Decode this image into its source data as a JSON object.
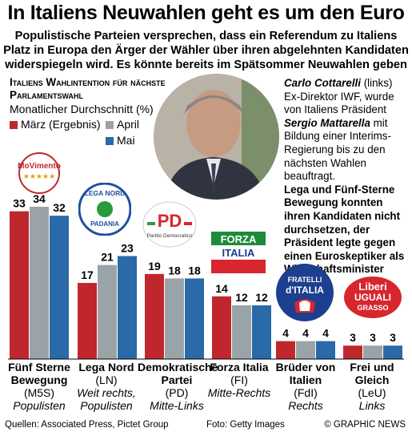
{
  "headline": "In Italiens Neuwahlen geht es um den Euro",
  "intro": "Populistische Parteien versprechen, dass ein Referendum zu Italiens Platz in Europa den Ärger der Wähler über ihren abgelehnten Kandidaten widerspiegeln wird. Es könnte bereits im Spätsommer Neuwahlen geben",
  "sidebar": {
    "line1_name": "Carlo Cottarelli",
    "line1_rest": " (links) Ex-Direktor IWF, wurde von Italiens Präsident",
    "line2_name": "Sergio Mattarella",
    "line2_rest": " mit Bildung einer Interims-Regierung bis zu den nächsten Wahlen beauftragt.",
    "para2": "Lega und Fünf-Sterne Bewegung konnten ihren Kandidaten nicht durchsetzen, der Präsident legte gegen einen Euroskeptiker als Wirtschaftsminister Veto ein"
  },
  "logos": {
    "m5s": {
      "text": "MoVimento",
      "sub": "★★★★★"
    },
    "lega": {
      "text1": "LEGA NORD",
      "text2": "PADANIA"
    },
    "pd": {
      "text": "PD",
      "sub": "Partito Democratico"
    },
    "fi": {
      "text1": "FORZA",
      "text2": "ITALIA"
    },
    "fdi": {
      "text1": "FRATELLI",
      "text2": "d'ITALIA"
    },
    "leu": {
      "text1": "Liberi",
      "text2": "UGUALI",
      "text3": "GRASSO"
    }
  },
  "chart_data": {
    "type": "bar",
    "title": "Italiens Wahlintention für nächste Parlamentswahl",
    "subtitle": "Monatlicher Durchschnitt (%)",
    "categories": [
      "Fünf Sterne Bewegung",
      "Lega Nord",
      "Demokratische Partei",
      "Forza Italia",
      "Brüder von Italien",
      "Frei und Gleich"
    ],
    "category_labels": [
      {
        "name": "Fünf Sterne Bewegung",
        "abbr": "(M5S)",
        "orient": "Populisten"
      },
      {
        "name": "Lega Nord",
        "abbr": "(LN)",
        "orient": "Weit rechts, Populisten"
      },
      {
        "name": "Demokratische Partei",
        "abbr": "(PD)",
        "orient": "Mitte-Links"
      },
      {
        "name": "Forza Italia",
        "abbr": "(FI)",
        "orient": "Mitte-Rechts"
      },
      {
        "name": "Brüder von Italien",
        "abbr": "(FdI)",
        "orient": "Rechts"
      },
      {
        "name": "Frei und Gleich",
        "abbr": "(LeU)",
        "orient": "Links"
      }
    ],
    "series": [
      {
        "name": "März (Ergebnis)",
        "color": "#c0272d",
        "values": [
          33,
          17,
          19,
          14,
          4,
          3
        ]
      },
      {
        "name": "April",
        "color": "#9aa3a8",
        "values": [
          34,
          21,
          18,
          12,
          4,
          3
        ]
      },
      {
        "name": "Mai",
        "color": "#2a6aa8",
        "values": [
          32,
          23,
          18,
          12,
          4,
          3
        ]
      }
    ],
    "ylim": [
      0,
      34
    ],
    "legend_placement": "top-left",
    "grid": false
  },
  "footer": {
    "sources": "Quellen: Associated Press, Pictet Group",
    "photo": "Foto: Getty Images",
    "credit": "© GRAPHIC NEWS"
  }
}
